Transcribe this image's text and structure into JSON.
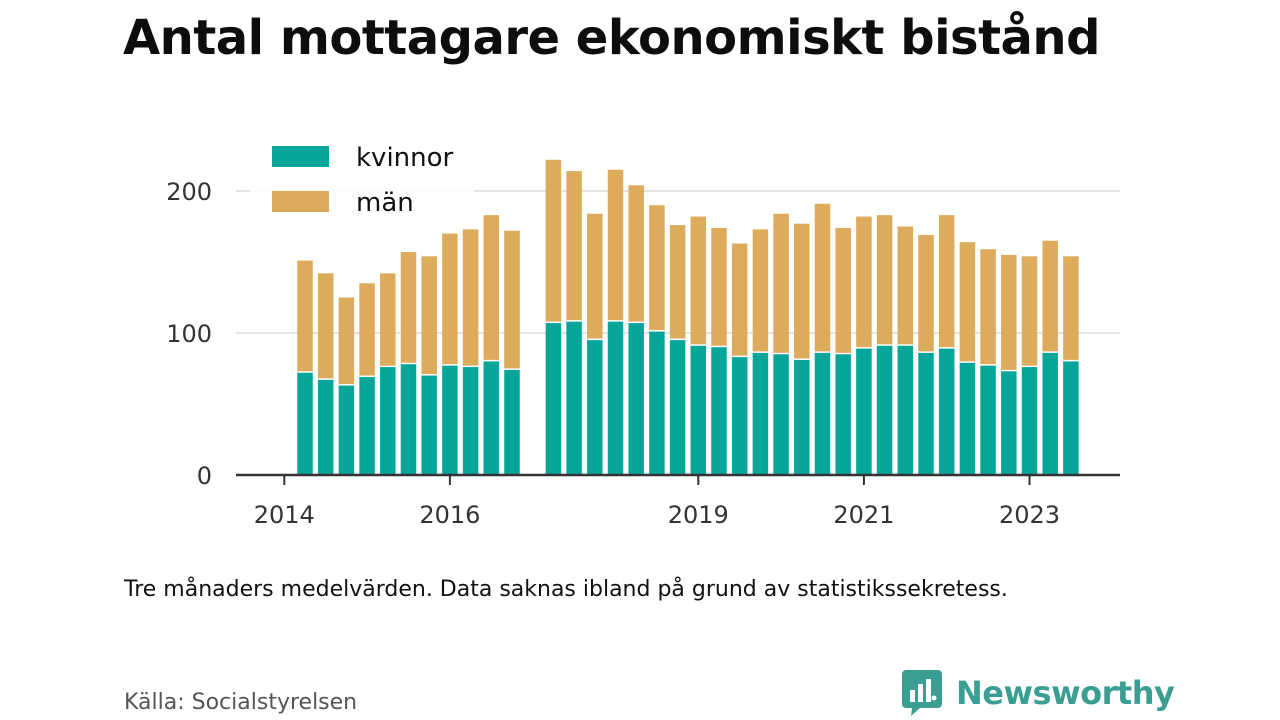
{
  "header": {
    "title": "Antal mottagare ekonomiskt bistånd"
  },
  "chart_data": {
    "type": "bar",
    "stacked": true,
    "title": "Antal mottagare ekonomiskt bistånd",
    "xlabel": "",
    "ylabel": "",
    "ylim": [
      0,
      240
    ],
    "yticks": [
      0,
      100,
      200
    ],
    "xticks": [
      "2014",
      "2016",
      "2019",
      "2021",
      "2023"
    ],
    "grid": true,
    "legend_position": "top-left",
    "colors": {
      "kvinnor": "#06a59a",
      "män": "#dcac5c"
    },
    "x": [
      "2014-Q2",
      "2014-Q3",
      "2014-Q4",
      "2015-Q1",
      "2015-Q2",
      "2015-Q3",
      "2015-Q4",
      "2016-Q1",
      "2016-Q2",
      "2016-Q3",
      "2016-Q4",
      "2017-Q1",
      "2017-Q2",
      "2017-Q3",
      "2017-Q4",
      "2018-Q1",
      "2018-Q2",
      "2018-Q3",
      "2018-Q4",
      "2019-Q1",
      "2019-Q2",
      "2019-Q3",
      "2019-Q4",
      "2020-Q1",
      "2020-Q2",
      "2020-Q3",
      "2020-Q4",
      "2021-Q1",
      "2021-Q2",
      "2021-Q3",
      "2021-Q4",
      "2022-Q1",
      "2022-Q2",
      "2022-Q3",
      "2022-Q4",
      "2023-Q1",
      "2023-Q2",
      "2023-Q3",
      "2023-Q4"
    ],
    "series": [
      {
        "name": "kvinnor",
        "values": [
          72,
          67,
          63,
          69,
          76,
          78,
          70,
          77,
          76,
          80,
          74,
          null,
          107,
          108,
          95,
          108,
          107,
          101,
          95,
          91,
          90,
          83,
          86,
          85,
          81,
          86,
          85,
          89,
          91,
          91,
          86,
          89,
          79,
          77,
          73,
          76,
          86,
          80,
          0
        ]
      },
      {
        "name": "män",
        "values": [
          79,
          75,
          62,
          66,
          66,
          79,
          84,
          93,
          97,
          103,
          98,
          null,
          115,
          106,
          89,
          107,
          97,
          89,
          81,
          91,
          84,
          80,
          87,
          99,
          96,
          105,
          89,
          93,
          92,
          84,
          83,
          94,
          85,
          82,
          82,
          78,
          79,
          74,
          0
        ]
      }
    ]
  },
  "legend": {
    "items": [
      "kvinnor",
      "män"
    ]
  },
  "footer": {
    "note": "Tre månaders medelvärden. Data saknas ibland på grund av statistikssekretess.",
    "source": "Källa: Socialstyrelsen",
    "brand": "Newsworthy",
    "brand_color": "#3a9f92"
  }
}
